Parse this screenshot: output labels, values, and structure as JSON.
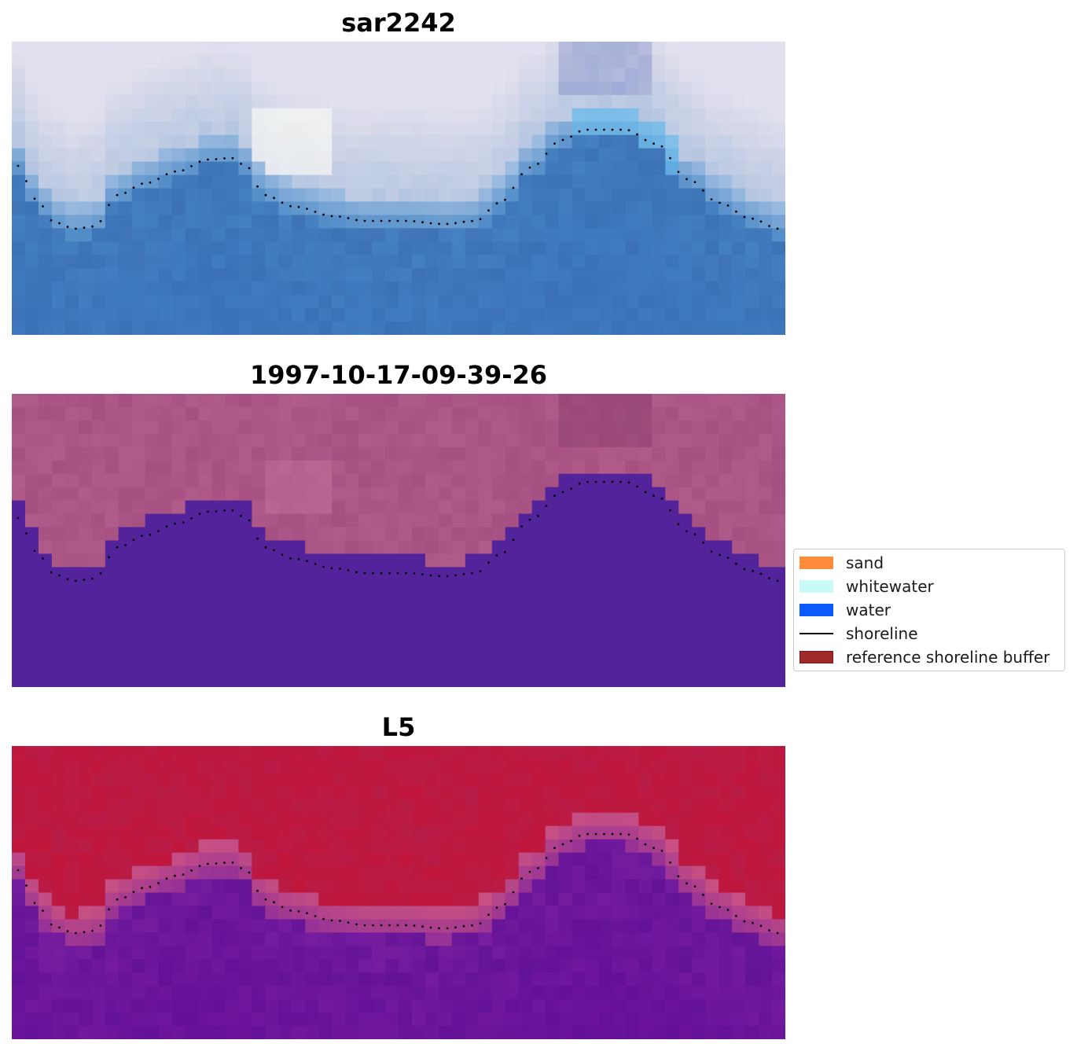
{
  "titles": {
    "top": "sar2242",
    "middle": "1997-10-17-09-39-26",
    "bottom": "L5"
  },
  "legend": {
    "items": [
      {
        "label": "sand",
        "color": "#ff8c3a",
        "kind": "patch"
      },
      {
        "label": "whitewater",
        "color": "#c8fbf7",
        "kind": "patch"
      },
      {
        "label": "water",
        "color": "#0b5aff",
        "kind": "patch"
      },
      {
        "label": "shoreline",
        "color": "#000000",
        "kind": "line"
      },
      {
        "label": "reference shoreline buffer",
        "color": "#a02a2a",
        "kind": "patch"
      }
    ]
  },
  "colors": {
    "water_class": "#52239a",
    "land_class": "#b05a88",
    "index_high": "#c0143a",
    "index_low": "#6a1a9e",
    "rgb_sky": "#dcdcec",
    "rgb_water": "#3d78b8"
  }
}
